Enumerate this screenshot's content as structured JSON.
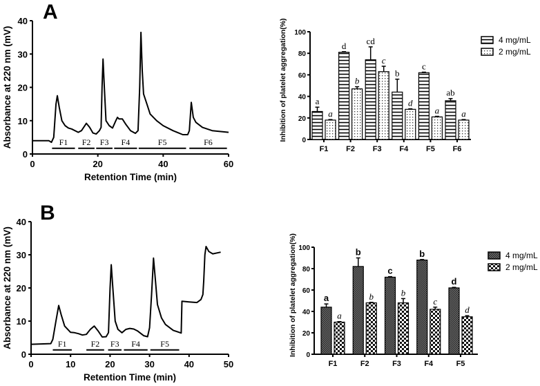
{
  "chart_data": [
    {
      "panel": "A",
      "type": "line",
      "xlabel": "Retention Time (min)",
      "ylabel": "Absorbance at 220 nm (mV)",
      "xlim": [
        0,
        60
      ],
      "ylim": [
        0,
        40
      ],
      "xticks": [
        0,
        20,
        40,
        60
      ],
      "yticks": [
        0,
        10,
        20,
        30,
        40
      ],
      "x": [
        0,
        5,
        5.8,
        6.5,
        7.2,
        7.6,
        8.2,
        9,
        10,
        11,
        12,
        14,
        15,
        16.5,
        17.5,
        18.5,
        19.5,
        20.5,
        21,
        21.3,
        21.6,
        22,
        22.5,
        23.5,
        24.5,
        25.5,
        26,
        26.5,
        27.5,
        28.5,
        30,
        31.5,
        32.3,
        32.8,
        33.2,
        33.6,
        34,
        35,
        36,
        38,
        40,
        43,
        46,
        47.5,
        48,
        48.6,
        49.2,
        50,
        52,
        55,
        60
      ],
      "y": [
        4,
        4,
        3.5,
        5,
        15,
        17.5,
        14,
        10,
        8.5,
        7.8,
        7.5,
        6.5,
        7,
        9.2,
        8,
        6.3,
        6,
        7,
        8,
        20,
        28.5,
        20,
        10,
        8.5,
        7.8,
        10,
        11,
        10.5,
        10.5,
        9,
        7,
        6.2,
        7,
        20,
        36.5,
        25,
        18,
        15,
        12,
        10,
        8.5,
        7,
        5.8,
        5.8,
        7,
        15.5,
        11,
        9.5,
        8,
        7,
        6.5
      ],
      "fractions": [
        {
          "label": "F1",
          "range": [
            6,
            13
          ]
        },
        {
          "label": "F2",
          "range": [
            14,
            19
          ]
        },
        {
          "label": "F3",
          "range": [
            19.5,
            24.5
          ]
        },
        {
          "label": "F4",
          "range": [
            25,
            32
          ]
        },
        {
          "label": "F5",
          "range": [
            32.5,
            47
          ]
        },
        {
          "label": "F6",
          "range": [
            48,
            59.5
          ]
        }
      ]
    },
    {
      "panel": "A",
      "type": "bar",
      "ylabel": "Inhibition of platelet aggregation(%)",
      "ylim": [
        0,
        100
      ],
      "yticks": [
        0,
        20,
        40,
        60,
        80,
        100
      ],
      "categories": [
        "F1",
        "F2",
        "F3",
        "F4",
        "F5",
        "F6"
      ],
      "legend_position": "top-right",
      "series": [
        {
          "name": "4 mg/mL",
          "values": [
            26,
            81,
            74,
            44,
            62,
            36
          ],
          "error": [
            4,
            0.5,
            12,
            12,
            0.5,
            2
          ],
          "letters": [
            "a",
            "d",
            "cd",
            "b",
            "c",
            "ab"
          ]
        },
        {
          "name": "2 mg/mL",
          "values": [
            18,
            47,
            63,
            28,
            21,
            18
          ],
          "error": [
            0.5,
            2,
            5,
            0.5,
            0.5,
            0.5
          ],
          "letters": [
            "a",
            "b",
            "c",
            "d",
            "a",
            "a"
          ]
        }
      ]
    },
    {
      "panel": "B",
      "type": "line",
      "xlabel": "Retention Time (min)",
      "ylabel": "Absorbance at 220 nm (mV)",
      "xlim": [
        0,
        50
      ],
      "ylim": [
        0,
        40
      ],
      "xticks": [
        0,
        10,
        20,
        30,
        40,
        50
      ],
      "yticks": [
        0,
        10,
        20,
        30,
        40
      ],
      "x": [
        0,
        5,
        5.5,
        6.3,
        7,
        7.6,
        8.5,
        10,
        11,
        12,
        13,
        14,
        15,
        16,
        17,
        18,
        19,
        19.6,
        20,
        20.3,
        20.7,
        21.3,
        22,
        23,
        24,
        25,
        26,
        27,
        28.5,
        29.5,
        30,
        30.5,
        31,
        31.5,
        32,
        33,
        34,
        36,
        38,
        38.2,
        40,
        42,
        43,
        43.5,
        43.7,
        44,
        44.3,
        45,
        46,
        48
      ],
      "y": [
        3,
        3.2,
        4.5,
        10,
        14.7,
        12,
        8.5,
        6.6,
        6.5,
        6.2,
        5.8,
        6,
        7.5,
        8.5,
        7,
        5.2,
        5.3,
        6.5,
        20,
        27,
        20,
        10,
        7.5,
        6.5,
        7.5,
        7.8,
        7.6,
        7,
        5.6,
        5.3,
        8,
        18,
        29,
        22,
        15,
        11,
        9,
        7.2,
        6.4,
        16,
        15.8,
        15.6,
        16.5,
        18,
        22,
        30,
        32.5,
        31,
        30.3,
        30.8
      ],
      "fractions": [
        {
          "label": "F1",
          "range": [
            5.5,
            10.3
          ]
        },
        {
          "label": "F2",
          "range": [
            14,
            18.5
          ]
        },
        {
          "label": "F3",
          "range": [
            19.5,
            22.9
          ]
        },
        {
          "label": "F4",
          "range": [
            23.5,
            29.5
          ]
        },
        {
          "label": "F5",
          "range": [
            30.2,
            37.5
          ]
        }
      ]
    },
    {
      "panel": "B",
      "type": "bar",
      "ylabel": "Inhibition of platelet aggregation(%)",
      "ylim": [
        0,
        100
      ],
      "yticks": [
        0,
        20,
        40,
        60,
        80,
        100
      ],
      "categories": [
        "F1",
        "F2",
        "F3",
        "F4",
        "F5"
      ],
      "legend_position": "top-right",
      "series": [
        {
          "name": "4 mg/mL",
          "values": [
            44,
            82,
            72,
            88,
            62
          ],
          "error": [
            3,
            8,
            0.5,
            0.5,
            0.5
          ],
          "letters": [
            "a",
            "b",
            "c",
            "b",
            "d"
          ]
        },
        {
          "name": "2 mg/mL",
          "values": [
            30,
            48,
            48,
            42,
            35
          ],
          "error": [
            0.5,
            0.5,
            4,
            2,
            1
          ],
          "letters": [
            "a",
            "b",
            "b",
            "c",
            "d"
          ]
        }
      ]
    }
  ],
  "panel_labels": [
    "A",
    "B"
  ]
}
